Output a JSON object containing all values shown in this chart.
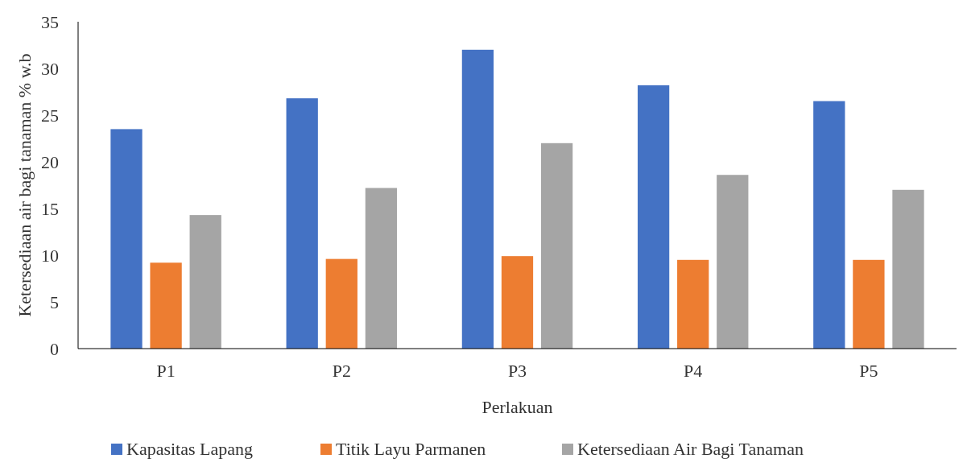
{
  "chart_data": {
    "type": "bar",
    "xlabel": "Perlakuan",
    "ylabel": "Ketersediaan air bagi tanaman % w.b",
    "categories": [
      "P1",
      "P2",
      "P3",
      "P4",
      "P5"
    ],
    "series": [
      {
        "name": "Kapasitas Lapang",
        "color": "#4472c4",
        "values": [
          23.5,
          26.8,
          32.0,
          28.2,
          26.5
        ]
      },
      {
        "name": "Titik Layu Parmanen",
        "color": "#ed7d31",
        "values": [
          9.2,
          9.6,
          9.9,
          9.5,
          9.5
        ]
      },
      {
        "name": "Ketersediaan Air Bagi Tanaman",
        "color": "#a5a5a5",
        "values": [
          14.3,
          17.2,
          22.0,
          18.6,
          17.0
        ]
      }
    ],
    "ylim": [
      0,
      35
    ],
    "yticks": [
      0,
      5,
      10,
      15,
      20,
      25,
      30,
      35
    ],
    "grid": false,
    "legend": "bottom"
  }
}
